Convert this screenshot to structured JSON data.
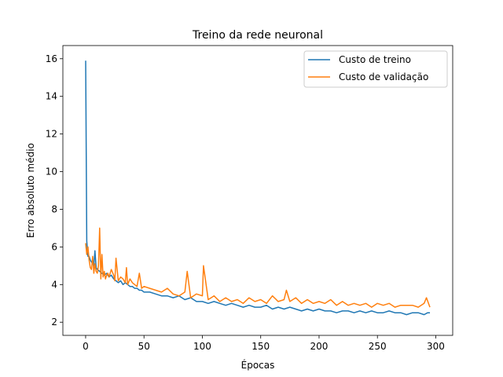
{
  "chart_data": {
    "type": "line",
    "title": "Treino da rede neuronal",
    "xlabel": "Épocas",
    "ylabel": "Erro absoluto médio",
    "xlim": [
      -19.5,
      314.5
    ],
    "ylim": [
      1.3,
      16.7
    ],
    "xticks": [
      0,
      50,
      100,
      150,
      200,
      250,
      300
    ],
    "yticks": [
      2,
      4,
      6,
      8,
      10,
      12,
      14,
      16
    ],
    "grid": false,
    "legend_position": "top-right",
    "series": [
      {
        "name": "Custo de treino",
        "color": "#1f77b4",
        "x": [
          0,
          1,
          2,
          3,
          4,
          5,
          6,
          7,
          8,
          9,
          10,
          12,
          14,
          16,
          18,
          20,
          22,
          24,
          26,
          28,
          30,
          32,
          34,
          36,
          38,
          40,
          42,
          44,
          46,
          48,
          50,
          55,
          60,
          65,
          70,
          75,
          80,
          85,
          90,
          95,
          100,
          105,
          110,
          115,
          120,
          125,
          130,
          135,
          140,
          145,
          150,
          155,
          160,
          165,
          170,
          175,
          180,
          185,
          190,
          195,
          200,
          205,
          210,
          215,
          220,
          225,
          230,
          235,
          240,
          245,
          250,
          255,
          260,
          265,
          270,
          275,
          280,
          285,
          290,
          293,
          295
        ],
        "values": [
          15.9,
          6.3,
          5.5,
          5.5,
          5.3,
          5.2,
          5.1,
          5.0,
          5.8,
          4.9,
          4.8,
          4.7,
          4.6,
          4.5,
          4.6,
          4.4,
          4.5,
          4.3,
          4.2,
          4.1,
          4.2,
          4.0,
          4.1,
          4.0,
          3.9,
          3.9,
          3.8,
          3.8,
          3.7,
          3.7,
          3.6,
          3.6,
          3.5,
          3.4,
          3.4,
          3.3,
          3.4,
          3.2,
          3.3,
          3.1,
          3.1,
          3.0,
          3.1,
          3.0,
          2.9,
          3.0,
          2.9,
          2.8,
          2.9,
          2.8,
          2.8,
          2.9,
          2.7,
          2.8,
          2.7,
          2.8,
          2.7,
          2.6,
          2.7,
          2.6,
          2.7,
          2.6,
          2.6,
          2.5,
          2.6,
          2.6,
          2.5,
          2.6,
          2.5,
          2.6,
          2.5,
          2.5,
          2.6,
          2.5,
          2.5,
          2.4,
          2.5,
          2.5,
          2.4,
          2.5,
          2.5
        ]
      },
      {
        "name": "Custo de validação",
        "color": "#ff7f0e",
        "x": [
          0,
          1,
          2,
          3,
          4,
          5,
          6,
          7,
          8,
          9,
          10,
          11,
          12,
          13,
          14,
          15,
          16,
          17,
          18,
          19,
          20,
          22,
          24,
          25,
          26,
          28,
          30,
          32,
          34,
          35,
          36,
          38,
          40,
          42,
          44,
          46,
          48,
          50,
          55,
          60,
          65,
          70,
          75,
          80,
          85,
          87,
          90,
          95,
          100,
          101,
          105,
          110,
          115,
          120,
          125,
          130,
          135,
          140,
          145,
          150,
          155,
          160,
          165,
          170,
          172,
          175,
          180,
          185,
          190,
          195,
          200,
          205,
          210,
          215,
          220,
          225,
          230,
          235,
          240,
          245,
          250,
          255,
          260,
          265,
          270,
          275,
          280,
          285,
          290,
          292,
          295
        ],
        "values": [
          6.2,
          5.6,
          6.0,
          5.3,
          4.9,
          4.8,
          5.5,
          4.6,
          5.1,
          4.7,
          4.6,
          5.0,
          7.0,
          4.3,
          5.6,
          4.4,
          4.7,
          4.3,
          4.5,
          4.6,
          4.4,
          4.8,
          4.5,
          4.2,
          5.4,
          4.2,
          4.4,
          4.3,
          4.1,
          4.9,
          4.0,
          4.3,
          4.1,
          4.0,
          3.9,
          4.6,
          3.8,
          3.9,
          3.8,
          3.7,
          3.6,
          3.8,
          3.5,
          3.4,
          3.6,
          4.7,
          3.3,
          3.5,
          3.4,
          5.0,
          3.2,
          3.4,
          3.1,
          3.3,
          3.1,
          3.2,
          3.0,
          3.3,
          3.1,
          3.2,
          3.0,
          3.4,
          3.1,
          3.2,
          3.7,
          3.1,
          3.3,
          3.0,
          3.2,
          3.0,
          3.1,
          3.0,
          3.2,
          2.9,
          3.1,
          2.9,
          3.0,
          2.9,
          3.0,
          2.8,
          3.0,
          2.9,
          3.0,
          2.8,
          2.9,
          2.9,
          2.9,
          2.8,
          3.0,
          3.3,
          2.8
        ]
      }
    ]
  }
}
